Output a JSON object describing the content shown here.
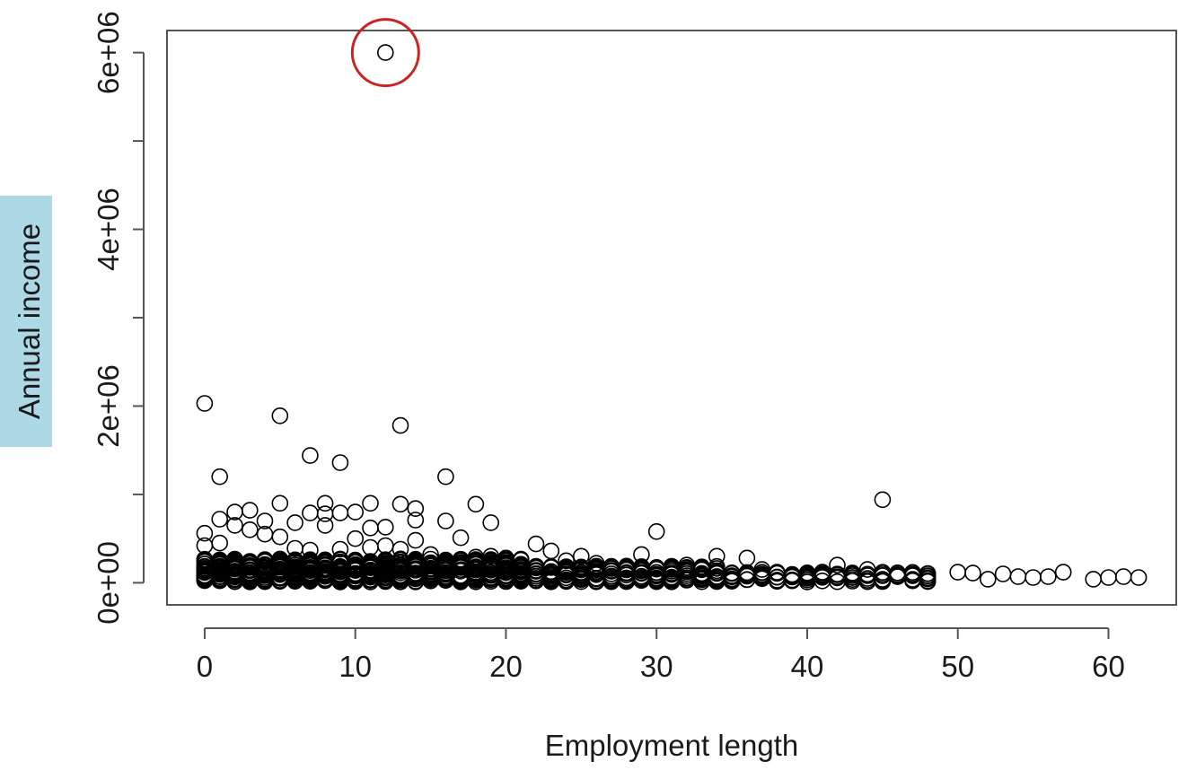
{
  "chart_data": {
    "type": "scatter",
    "title": "",
    "xlabel": "Employment length",
    "ylabel": "Annual income",
    "xlim": [
      -2.5,
      64.5
    ],
    "ylim": [
      -250000,
      6250000
    ],
    "x_ticks": [
      0,
      10,
      20,
      30,
      40,
      50,
      60
    ],
    "x_tick_labels": [
      "0",
      "10",
      "20",
      "30",
      "40",
      "50",
      "60"
    ],
    "y_ticks": [
      0,
      1000000,
      2000000,
      3000000,
      4000000,
      5000000,
      6000000
    ],
    "y_tick_labels": [
      "0e+00",
      "",
      "2e+06",
      "",
      "4e+06",
      "",
      "6e+06"
    ],
    "grid": false,
    "ylabel_highlight_color": "#add8e6",
    "point_color": "#000000",
    "highlight_color": "#cc2222",
    "highlighted_point": {
      "x": 12,
      "y": 6000000
    },
    "series": [
      {
        "points": [
          [
            12,
            6000000
          ],
          [
            0,
            2030000
          ],
          [
            5,
            1890000
          ],
          [
            13,
            1780000
          ],
          [
            7,
            1440000
          ],
          [
            9,
            1360000
          ],
          [
            1,
            1200000
          ],
          [
            16,
            1200000
          ],
          [
            45,
            940000
          ],
          [
            5,
            900000
          ],
          [
            8,
            900000
          ],
          [
            11,
            900000
          ],
          [
            13,
            890000
          ],
          [
            18,
            890000
          ],
          [
            14,
            840000
          ],
          [
            3,
            820000
          ],
          [
            2,
            800000
          ],
          [
            7,
            790000
          ],
          [
            8,
            780000
          ],
          [
            9,
            790000
          ],
          [
            10,
            800000
          ],
          [
            1,
            720000
          ],
          [
            16,
            700000
          ],
          [
            19,
            680000
          ],
          [
            4,
            700000
          ],
          [
            6,
            680000
          ],
          [
            14,
            710000
          ],
          [
            8,
            650000
          ],
          [
            12,
            630000
          ],
          [
            11,
            620000
          ],
          [
            0,
            560000
          ],
          [
            30,
            580000
          ],
          [
            17,
            510000
          ],
          [
            3,
            600000
          ],
          [
            5,
            520000
          ],
          [
            14,
            480000
          ],
          [
            2,
            650000
          ],
          [
            4,
            550000
          ],
          [
            22,
            440000
          ],
          [
            10,
            500000
          ],
          [
            23,
            360000
          ],
          [
            29,
            320000
          ],
          [
            34,
            300000
          ],
          [
            36,
            280000
          ],
          [
            25,
            300000
          ],
          [
            42,
            200000
          ],
          [
            44,
            150000
          ],
          [
            47,
            80000
          ],
          [
            50,
            120000
          ],
          [
            51,
            110000
          ],
          [
            53,
            100000
          ],
          [
            54,
            70000
          ],
          [
            55,
            60000
          ],
          [
            56,
            70000
          ],
          [
            57,
            120000
          ],
          [
            59,
            40000
          ],
          [
            61,
            70000
          ],
          [
            62,
            60000
          ],
          [
            48,
            80000
          ],
          [
            46,
            90000
          ],
          [
            45,
            100000
          ],
          [
            43,
            60000
          ],
          [
            40,
            100000
          ],
          [
            39,
            80000
          ],
          [
            38,
            120000
          ],
          [
            37,
            150000
          ],
          [
            35,
            80000
          ],
          [
            33,
            180000
          ],
          [
            32,
            200000
          ],
          [
            31,
            150000
          ],
          [
            28,
            180000
          ],
          [
            27,
            160000
          ],
          [
            26,
            220000
          ],
          [
            24,
            250000
          ],
          [
            21,
            260000
          ],
          [
            20,
            280000
          ],
          [
            19,
            300000
          ],
          [
            18,
            290000
          ],
          [
            15,
            320000
          ],
          [
            13,
            380000
          ],
          [
            12,
            420000
          ],
          [
            11,
            400000
          ],
          [
            9,
            380000
          ],
          [
            7,
            370000
          ],
          [
            6,
            390000
          ],
          [
            1,
            450000
          ],
          [
            0,
            420000
          ],
          [
            52,
            40000
          ],
          [
            60,
            60000
          ],
          [
            41,
            120000
          ]
        ]
      }
    ]
  }
}
